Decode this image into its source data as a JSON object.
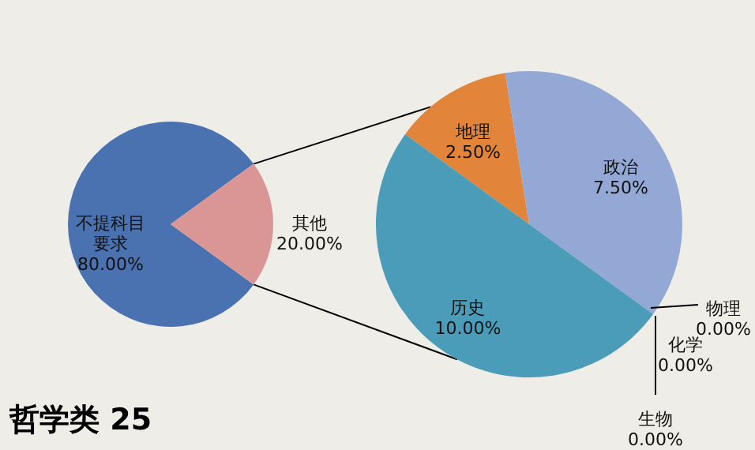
{
  "chart_data": [
    {
      "type": "pie",
      "title": "哲学类 25",
      "categories": [
        "不提科目要求",
        "其他"
      ],
      "values": [
        80,
        20
      ],
      "colors": [
        "#4a72b0",
        "#d99694"
      ],
      "value_labels": [
        "80.00%",
        "20.00%"
      ]
    },
    {
      "type": "pie",
      "categories": [
        "地理",
        "政治",
        "物理",
        "化学",
        "生物",
        "历史"
      ],
      "values": [
        2.5,
        7.5,
        0,
        0,
        0,
        10
      ],
      "colors": [
        "#e2843a",
        "#94a8d6",
        "#9bbb59",
        "#8064a2",
        "#f79646",
        "#4a9cb8"
      ],
      "value_labels": [
        "2.50%",
        "7.50%",
        "0.00%",
        "0.00%",
        "0.00%",
        "10.00%"
      ]
    }
  ]
}
